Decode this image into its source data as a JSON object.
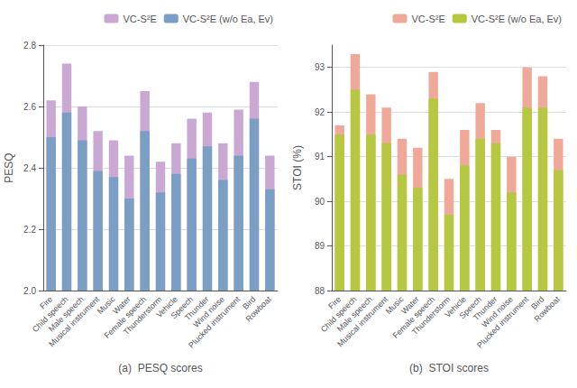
{
  "chart_data": [
    {
      "type": "bar",
      "xlabel": "(a)  PESQ scores",
      "ylabel": "PESQ",
      "categories": [
        "Fire",
        "Child speech",
        "Male speech",
        "Musical instrument",
        "Music",
        "Water",
        "Female speech",
        "Thunderstorm",
        "Vehicle",
        "Speech",
        "Thunder",
        "Wind noise",
        "Plucked instrument",
        "Bird",
        "Rowboat"
      ],
      "series": [
        {
          "name": "VC-S²E",
          "color": "#c9a8d4",
          "values": [
            2.62,
            2.74,
            2.6,
            2.52,
            2.49,
            2.44,
            2.65,
            2.42,
            2.48,
            2.56,
            2.58,
            2.48,
            2.59,
            2.68,
            2.44
          ]
        },
        {
          "name": "VC-S²E (w/o Ea, Ev)",
          "color": "#7b9ec4",
          "values": [
            2.5,
            2.58,
            2.49,
            2.39,
            2.37,
            2.3,
            2.52,
            2.32,
            2.38,
            2.43,
            2.47,
            2.36,
            2.44,
            2.56,
            2.33
          ]
        }
      ],
      "ylim": [
        2.0,
        2.8
      ],
      "yticks": [
        {
          "value": 2.0,
          "label": "2.0"
        },
        2.2,
        2.4,
        2.6,
        2.8
      ],
      "grid": true,
      "legend": "upper right"
    },
    {
      "type": "bar",
      "xlabel": "(b)  STOI scores",
      "ylabel": "STOI (%)",
      "categories": [
        "Fire",
        "Child speech",
        "Male speech",
        "Musical instrument",
        "Music",
        "Water",
        "Female speech",
        "Thunderstorm",
        "Vehicle",
        "Speech",
        "Thunder",
        "Wind noise",
        "Plucked instrument",
        "Bird",
        "Rowboat"
      ],
      "series": [
        {
          "name": "VC-S²E",
          "color": "#f0a898",
          "values": [
            91.7,
            93.3,
            92.4,
            92.1,
            91.4,
            91.2,
            92.9,
            90.5,
            91.6,
            92.2,
            91.6,
            91.0,
            93.0,
            92.8,
            91.4
          ]
        },
        {
          "name": "VC-S²E (w/o Ea, Ev)",
          "color": "#b5c840",
          "values": [
            91.5,
            92.5,
            91.5,
            91.3,
            90.6,
            90.3,
            92.3,
            89.7,
            90.8,
            91.4,
            91.3,
            90.2,
            92.1,
            92.1,
            90.7
          ]
        }
      ],
      "ylim": [
        88,
        93.5
      ],
      "yticks": [
        88,
        89,
        90,
        91,
        92,
        93
      ],
      "grid": true,
      "legend": "upper right"
    }
  ]
}
